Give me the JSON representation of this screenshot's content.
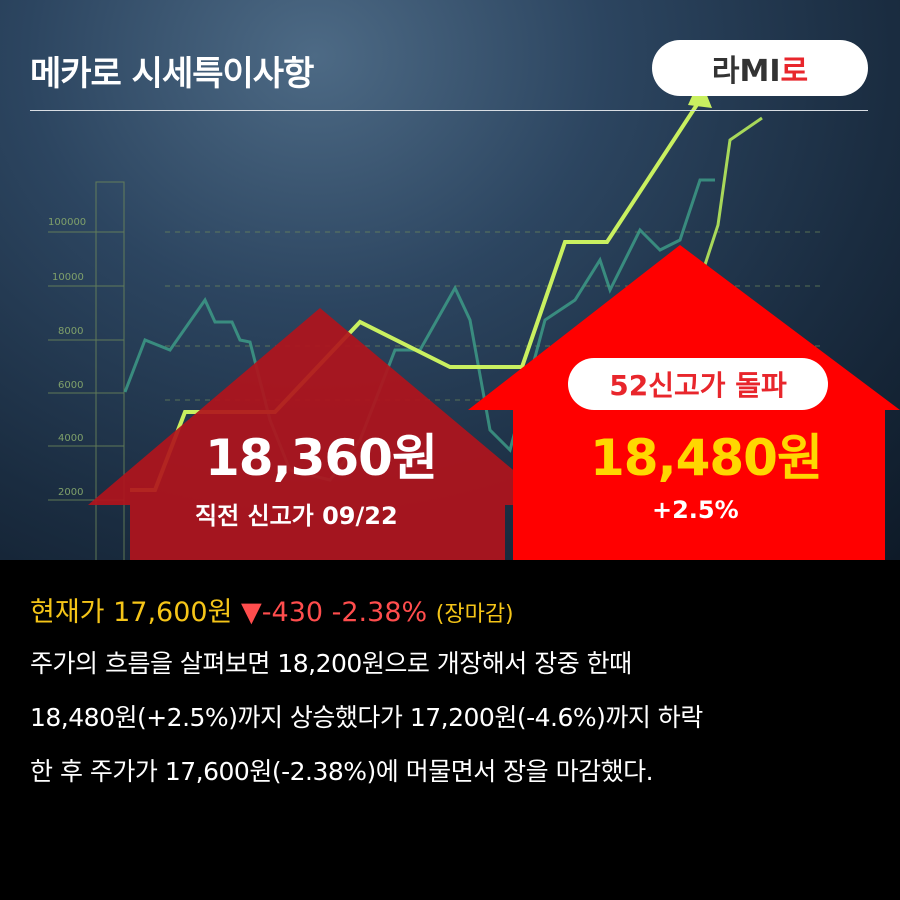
{
  "header": {
    "title": "메카로 시세특이사항",
    "logo": {
      "part1": "라MI",
      "part2": "로"
    }
  },
  "background_chart": {
    "axis_labels": [
      "100000",
      "10000",
      "8000",
      "6000",
      "4000",
      "2000"
    ]
  },
  "previous_high": {
    "price": "18,360원",
    "label": "직전 신고가 09/22"
  },
  "new_high": {
    "badge": "52신고가 돌파",
    "price": "18,480원",
    "change": "+2.5%"
  },
  "summary": {
    "current_label": "현재가 17,600원",
    "arrow": "▼",
    "change": "-430 -2.38%",
    "status": "(장마감)",
    "lines": [
      "주가의 흐름을 살펴보면 18,200원으로 개장해서 장중 한때",
      "18,480원(+2.5%)까지 상승했다가 17,200원(-4.6%)까지 하락",
      "한 후 주가가 17,600원(-2.38%)에 머물면서 장을 마감했다."
    ]
  },
  "colors": {
    "accent_red": "#e8262c",
    "dark_red": "#b0141c",
    "yellow": "#f5c518",
    "down_red": "#ff4d4d"
  }
}
